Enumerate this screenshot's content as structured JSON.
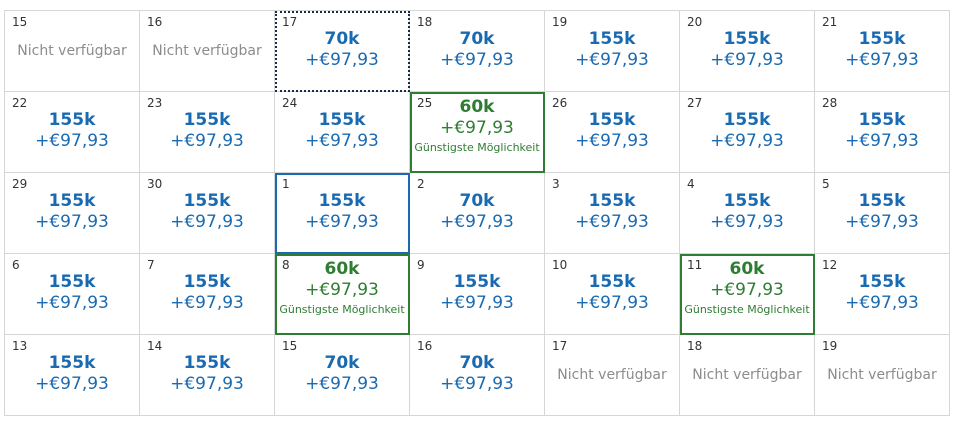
{
  "colors": {
    "price_blue": "#1a6ab1",
    "best_green": "#2e7d32",
    "unavailable_gray": "#8c8c8c",
    "border_gray": "#d6d6d6"
  },
  "labels": {
    "unavailable": "Nicht verfügbar",
    "best": "Günstigste Möglichkeit"
  },
  "cells": [
    {
      "day": "15",
      "miles": "",
      "price": "",
      "state": "unavailable"
    },
    {
      "day": "16",
      "miles": "",
      "price": "",
      "state": "unavailable"
    },
    {
      "day": "17",
      "miles": "70k",
      "price": "+€97,93",
      "state": "focused"
    },
    {
      "day": "18",
      "miles": "70k",
      "price": "+€97,93",
      "state": "normal"
    },
    {
      "day": "19",
      "miles": "155k",
      "price": "+€97,93",
      "state": "normal"
    },
    {
      "day": "20",
      "miles": "155k",
      "price": "+€97,93",
      "state": "normal"
    },
    {
      "day": "21",
      "miles": "155k",
      "price": "+€97,93",
      "state": "normal"
    },
    {
      "day": "22",
      "miles": "155k",
      "price": "+€97,93",
      "state": "normal"
    },
    {
      "day": "23",
      "miles": "155k",
      "price": "+€97,93",
      "state": "normal"
    },
    {
      "day": "24",
      "miles": "155k",
      "price": "+€97,93",
      "state": "normal"
    },
    {
      "day": "25",
      "miles": "60k",
      "price": "+€97,93",
      "state": "best"
    },
    {
      "day": "26",
      "miles": "155k",
      "price": "+€97,93",
      "state": "normal"
    },
    {
      "day": "27",
      "miles": "155k",
      "price": "+€97,93",
      "state": "normal"
    },
    {
      "day": "28",
      "miles": "155k",
      "price": "+€97,93",
      "state": "normal"
    },
    {
      "day": "29",
      "miles": "155k",
      "price": "+€97,93",
      "state": "normal"
    },
    {
      "day": "30",
      "miles": "155k",
      "price": "+€97,93",
      "state": "normal"
    },
    {
      "day": "1",
      "miles": "155k",
      "price": "+€97,93",
      "state": "selected"
    },
    {
      "day": "2",
      "miles": "70k",
      "price": "+€97,93",
      "state": "normal"
    },
    {
      "day": "3",
      "miles": "155k",
      "price": "+€97,93",
      "state": "normal"
    },
    {
      "day": "4",
      "miles": "155k",
      "price": "+€97,93",
      "state": "normal"
    },
    {
      "day": "5",
      "miles": "155k",
      "price": "+€97,93",
      "state": "normal"
    },
    {
      "day": "6",
      "miles": "155k",
      "price": "+€97,93",
      "state": "normal"
    },
    {
      "day": "7",
      "miles": "155k",
      "price": "+€97,93",
      "state": "normal"
    },
    {
      "day": "8",
      "miles": "60k",
      "price": "+€97,93",
      "state": "best"
    },
    {
      "day": "9",
      "miles": "155k",
      "price": "+€97,93",
      "state": "normal"
    },
    {
      "day": "10",
      "miles": "155k",
      "price": "+€97,93",
      "state": "normal"
    },
    {
      "day": "11",
      "miles": "60k",
      "price": "+€97,93",
      "state": "best"
    },
    {
      "day": "12",
      "miles": "155k",
      "price": "+€97,93",
      "state": "normal"
    },
    {
      "day": "13",
      "miles": "155k",
      "price": "+€97,93",
      "state": "normal"
    },
    {
      "day": "14",
      "miles": "155k",
      "price": "+€97,93",
      "state": "normal"
    },
    {
      "day": "15",
      "miles": "70k",
      "price": "+€97,93",
      "state": "normal"
    },
    {
      "day": "16",
      "miles": "70k",
      "price": "+€97,93",
      "state": "normal"
    },
    {
      "day": "17",
      "miles": "",
      "price": "",
      "state": "unavailable"
    },
    {
      "day": "18",
      "miles": "",
      "price": "",
      "state": "unavailable"
    },
    {
      "day": "19",
      "miles": "",
      "price": "",
      "state": "unavailable"
    }
  ]
}
